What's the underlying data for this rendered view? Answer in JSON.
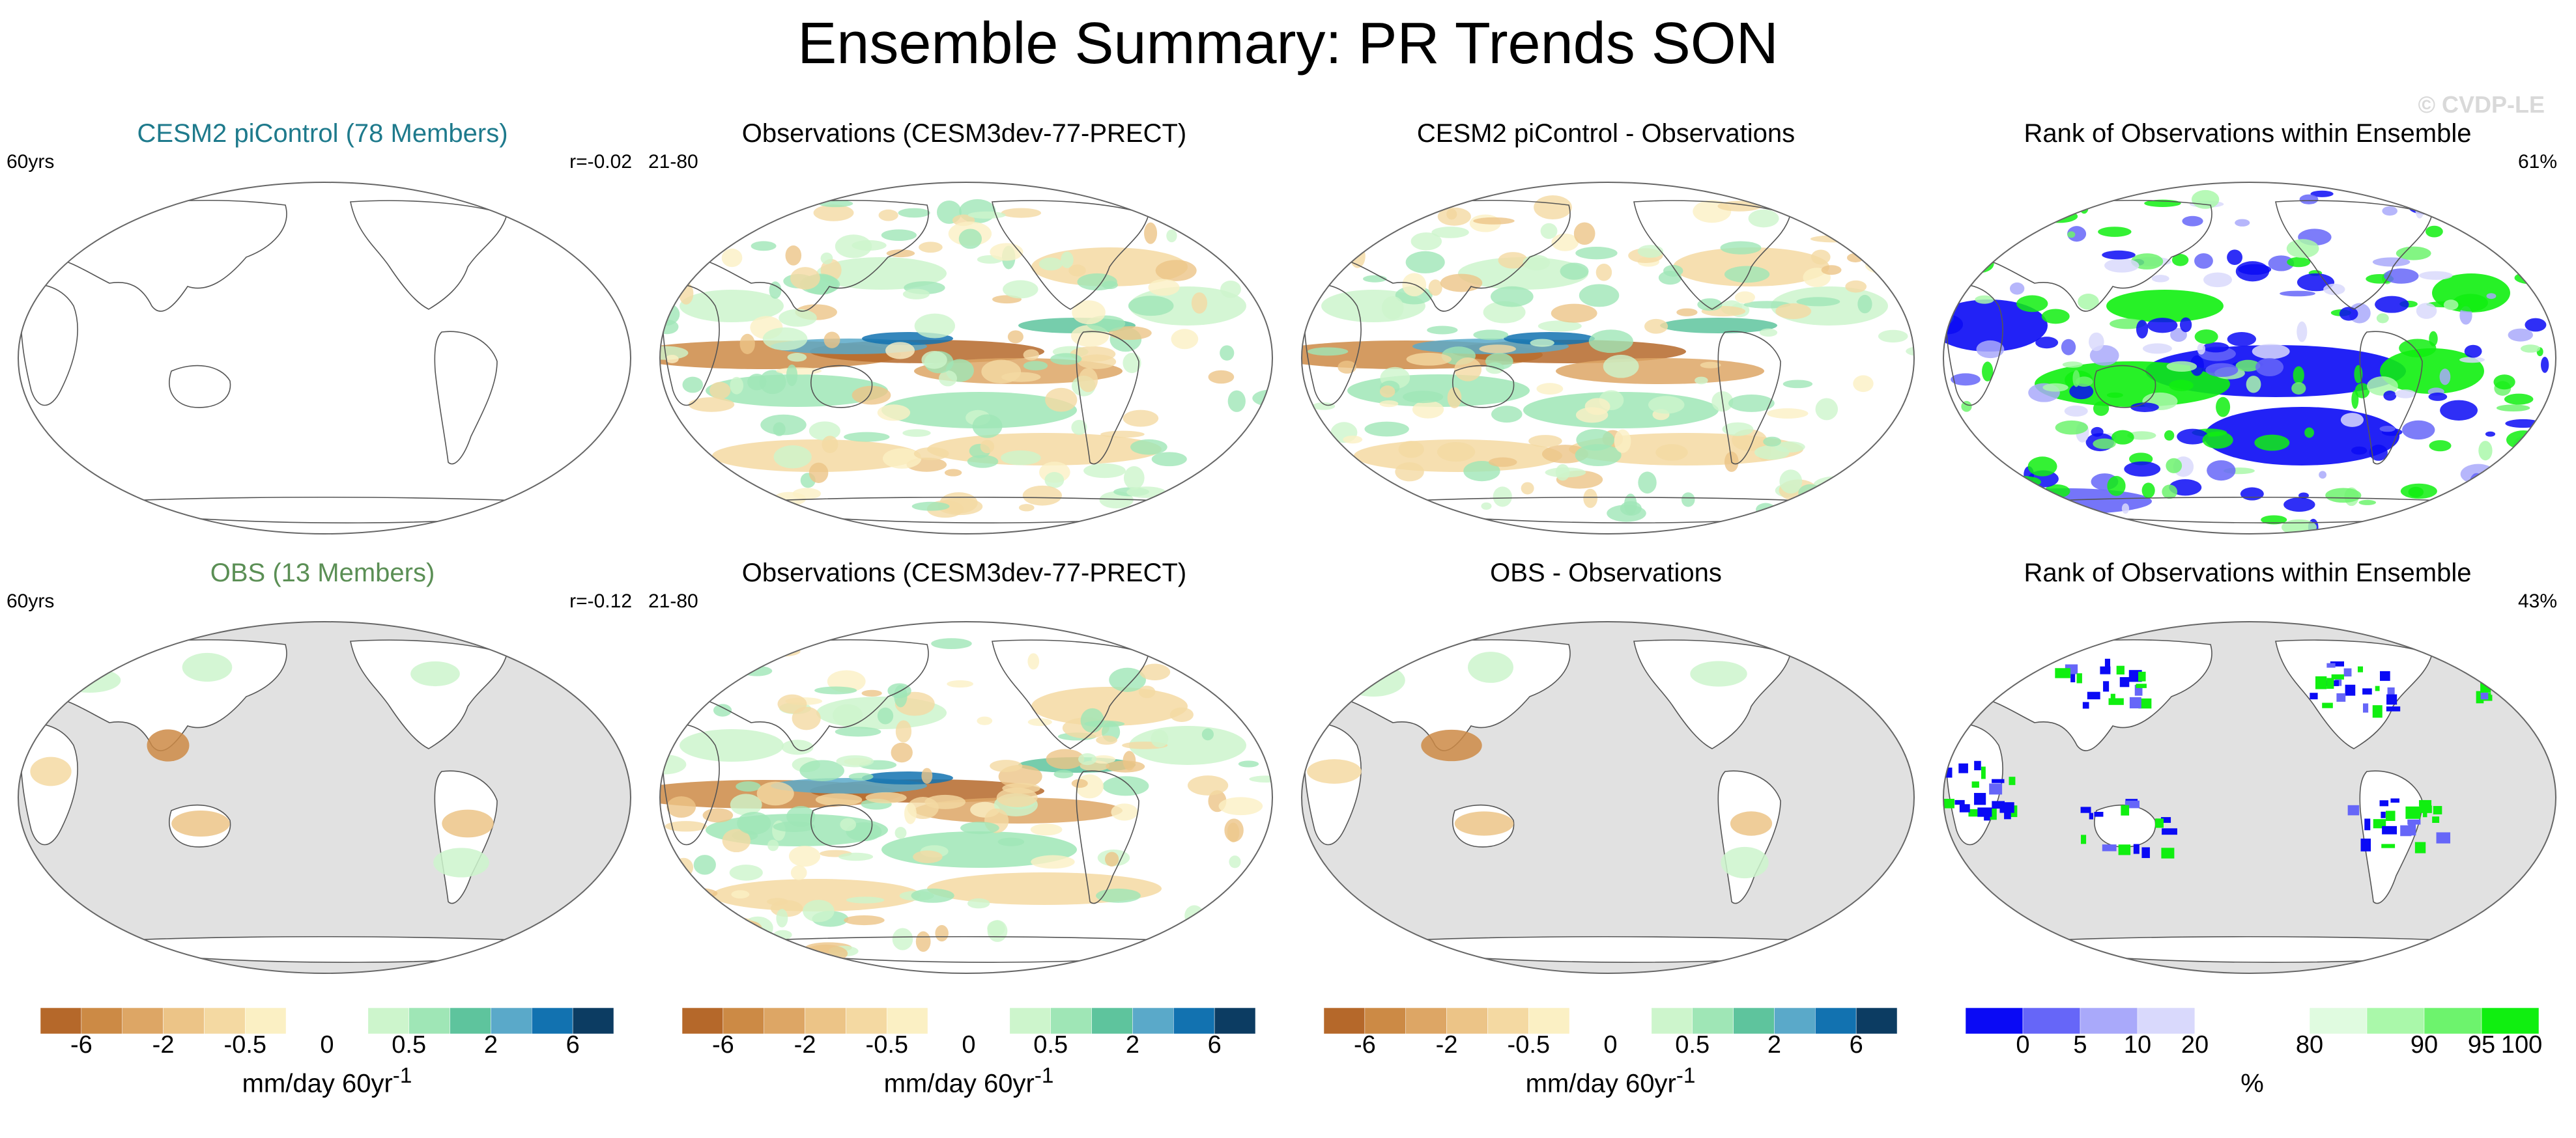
{
  "title": "Ensemble Summary: PR Trends SON",
  "watermark": "© CVDP-LE",
  "colors": {
    "precip_scale": [
      "#b5682a",
      "#cc8a45",
      "#dda665",
      "#ecc487",
      "#f4d9a2",
      "#fbf0c4",
      "#ffffff",
      "#ffffff",
      "#cdf5cc",
      "#9fe6b6",
      "#5ec49d",
      "#5aa9c9",
      "#1272b0",
      "#0c3c62"
    ],
    "rank_scale": [
      "#0a0af5",
      "#6666f8",
      "#a9a9fa",
      "#d9d9fc",
      "#ffffff",
      "#ffffff",
      "#e0fbe0",
      "#aaf8aa",
      "#6df36d",
      "#10ef10"
    ],
    "land_mask": "#e1e1e1",
    "coast": "#555555"
  },
  "panels": [
    {
      "title": "CESM2 piControl (78 Members)",
      "title_color": "#1e7a8c",
      "left": "60yrs",
      "right": "r=-0.02",
      "style": "blank"
    },
    {
      "title": "Observations (CESM3dev-77-PRECT)",
      "title_color": "#000000",
      "left": "21-80",
      "right": "",
      "style": "precip"
    },
    {
      "title": "CESM2 piControl - Observations",
      "title_color": "#000000",
      "left": "",
      "right": "",
      "style": "precip"
    },
    {
      "title": "Rank of Observations within Ensemble",
      "title_color": "#000000",
      "left": "",
      "right": "61%",
      "style": "rank"
    },
    {
      "title": "OBS (13 Members)",
      "title_color": "#5b8f55",
      "left": "60yrs",
      "right": "r=-0.12",
      "style": "ocean-masked"
    },
    {
      "title": "Observations (CESM3dev-77-PRECT)",
      "title_color": "#000000",
      "left": "21-80",
      "right": "",
      "style": "precip"
    },
    {
      "title": "OBS - Observations",
      "title_color": "#000000",
      "left": "",
      "right": "",
      "style": "ocean-masked"
    },
    {
      "title": "Rank of Observations within Ensemble",
      "title_color": "#000000",
      "left": "",
      "right": "43%",
      "style": "rank-land"
    }
  ],
  "colorbars": [
    {
      "type": "precip",
      "ticks": [
        "-6",
        "-2",
        "-0.5",
        "0",
        "0.5",
        "2",
        "6"
      ],
      "units_base": "mm/day 60yr",
      "units_exp": "-1"
    },
    {
      "type": "precip",
      "ticks": [
        "-6",
        "-2",
        "-0.5",
        "0",
        "0.5",
        "2",
        "6"
      ],
      "units_base": "mm/day 60yr",
      "units_exp": "-1"
    },
    {
      "type": "precip",
      "ticks": [
        "-6",
        "-2",
        "-0.5",
        "0",
        "0.5",
        "2",
        "6"
      ],
      "units_base": "mm/day 60yr",
      "units_exp": "-1"
    },
    {
      "type": "rank",
      "ticks": [
        "0",
        "5",
        "10",
        "20",
        "80",
        "90",
        "95",
        "100"
      ],
      "units_base": "%",
      "units_exp": ""
    }
  ]
}
